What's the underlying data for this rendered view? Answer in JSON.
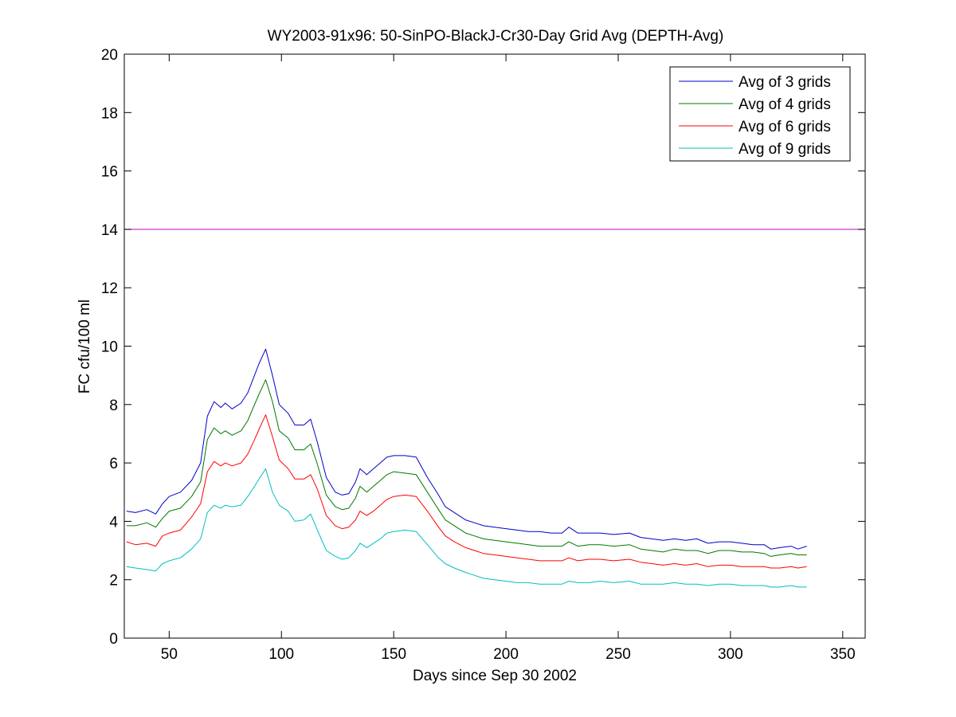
{
  "chart_data": {
    "type": "line",
    "title": "WY2003-91x96: 50-SinPO-BlackJ-Cr30-Day Grid Avg (DEPTH-Avg)",
    "xlabel": "Days since Sep 30 2002",
    "ylabel": "FC cfu/100 ml",
    "xlim": [
      30,
      360
    ],
    "ylim": [
      0,
      20
    ],
    "xticks": [
      50,
      100,
      150,
      200,
      250,
      300,
      350
    ],
    "yticks": [
      0,
      2,
      4,
      6,
      8,
      10,
      12,
      14,
      16,
      18,
      20
    ],
    "grid": false,
    "legend_position": "top-right",
    "x": [
      31,
      35,
      40,
      44,
      47,
      50,
      55,
      60,
      64,
      67,
      70,
      73,
      75,
      78,
      82,
      85,
      88,
      90,
      93,
      96,
      99,
      103,
      106,
      110,
      113,
      116,
      120,
      124,
      127,
      130,
      133,
      135,
      138,
      141,
      144,
      147,
      150,
      155,
      160,
      165,
      170,
      173,
      177,
      182,
      186,
      190,
      195,
      200,
      205,
      210,
      215,
      220,
      225,
      228,
      232,
      237,
      242,
      248,
      255,
      260,
      265,
      270,
      275,
      280,
      285,
      290,
      295,
      300,
      305,
      310,
      315,
      318,
      322,
      327,
      330,
      334
    ],
    "series": [
      {
        "name": "Avg of 3 grids",
        "color": "#0000c8",
        "values": [
          4.35,
          4.3,
          4.4,
          4.25,
          4.6,
          4.85,
          5.0,
          5.4,
          6.0,
          7.6,
          8.1,
          7.9,
          8.05,
          7.85,
          8.05,
          8.4,
          9.0,
          9.4,
          9.9,
          9.0,
          8.0,
          7.7,
          7.3,
          7.3,
          7.5,
          6.7,
          5.5,
          5.0,
          4.9,
          4.95,
          5.35,
          5.8,
          5.6,
          5.8,
          6.0,
          6.2,
          6.25,
          6.25,
          6.2,
          5.5,
          4.9,
          4.5,
          4.3,
          4.05,
          3.95,
          3.85,
          3.8,
          3.75,
          3.7,
          3.65,
          3.65,
          3.6,
          3.6,
          3.8,
          3.6,
          3.6,
          3.6,
          3.55,
          3.6,
          3.45,
          3.4,
          3.35,
          3.4,
          3.35,
          3.4,
          3.25,
          3.3,
          3.3,
          3.25,
          3.2,
          3.2,
          3.05,
          3.1,
          3.15,
          3.05,
          3.15
        ]
      },
      {
        "name": "Avg of 4 grids",
        "color": "#007800",
        "values": [
          3.85,
          3.85,
          3.95,
          3.8,
          4.1,
          4.35,
          4.45,
          4.85,
          5.35,
          6.8,
          7.2,
          7.0,
          7.1,
          6.95,
          7.1,
          7.45,
          8.0,
          8.35,
          8.85,
          8.1,
          7.1,
          6.85,
          6.45,
          6.45,
          6.65,
          5.95,
          4.9,
          4.5,
          4.4,
          4.45,
          4.8,
          5.2,
          5.0,
          5.2,
          5.4,
          5.6,
          5.7,
          5.65,
          5.6,
          5.0,
          4.4,
          4.05,
          3.85,
          3.6,
          3.5,
          3.4,
          3.35,
          3.3,
          3.25,
          3.2,
          3.15,
          3.15,
          3.15,
          3.3,
          3.15,
          3.2,
          3.2,
          3.15,
          3.2,
          3.05,
          3.0,
          2.95,
          3.05,
          3.0,
          3.0,
          2.9,
          3.0,
          3.0,
          2.95,
          2.95,
          2.9,
          2.8,
          2.85,
          2.9,
          2.85,
          2.85
        ]
      },
      {
        "name": "Avg of 6 grids",
        "color": "#ff0000",
        "values": [
          3.3,
          3.2,
          3.25,
          3.15,
          3.5,
          3.6,
          3.7,
          4.15,
          4.6,
          5.7,
          6.05,
          5.9,
          6.0,
          5.9,
          6.0,
          6.3,
          6.8,
          7.15,
          7.65,
          6.9,
          6.1,
          5.8,
          5.45,
          5.45,
          5.6,
          5.1,
          4.2,
          3.85,
          3.75,
          3.8,
          4.05,
          4.35,
          4.2,
          4.35,
          4.55,
          4.75,
          4.85,
          4.9,
          4.85,
          4.35,
          3.8,
          3.5,
          3.3,
          3.1,
          3.0,
          2.9,
          2.85,
          2.8,
          2.75,
          2.7,
          2.65,
          2.65,
          2.65,
          2.75,
          2.65,
          2.7,
          2.7,
          2.65,
          2.7,
          2.6,
          2.55,
          2.5,
          2.55,
          2.5,
          2.55,
          2.45,
          2.5,
          2.5,
          2.45,
          2.45,
          2.45,
          2.4,
          2.4,
          2.45,
          2.4,
          2.45
        ]
      },
      {
        "name": "Avg of 9 grids",
        "color": "#00bfbf",
        "values": [
          2.45,
          2.4,
          2.35,
          2.3,
          2.55,
          2.65,
          2.75,
          3.05,
          3.4,
          4.3,
          4.55,
          4.45,
          4.55,
          4.5,
          4.55,
          4.85,
          5.2,
          5.45,
          5.8,
          5.0,
          4.55,
          4.35,
          4.0,
          4.05,
          4.25,
          3.7,
          3.0,
          2.8,
          2.7,
          2.75,
          3.0,
          3.25,
          3.1,
          3.25,
          3.4,
          3.6,
          3.65,
          3.7,
          3.65,
          3.2,
          2.75,
          2.55,
          2.4,
          2.25,
          2.15,
          2.05,
          2.0,
          1.95,
          1.9,
          1.9,
          1.85,
          1.85,
          1.85,
          1.95,
          1.9,
          1.9,
          1.95,
          1.9,
          1.95,
          1.85,
          1.85,
          1.85,
          1.9,
          1.85,
          1.85,
          1.8,
          1.85,
          1.85,
          1.8,
          1.8,
          1.8,
          1.75,
          1.75,
          1.8,
          1.75,
          1.75
        ]
      }
    ],
    "reference_line": {
      "y": 14,
      "color": "#c800c8"
    }
  }
}
